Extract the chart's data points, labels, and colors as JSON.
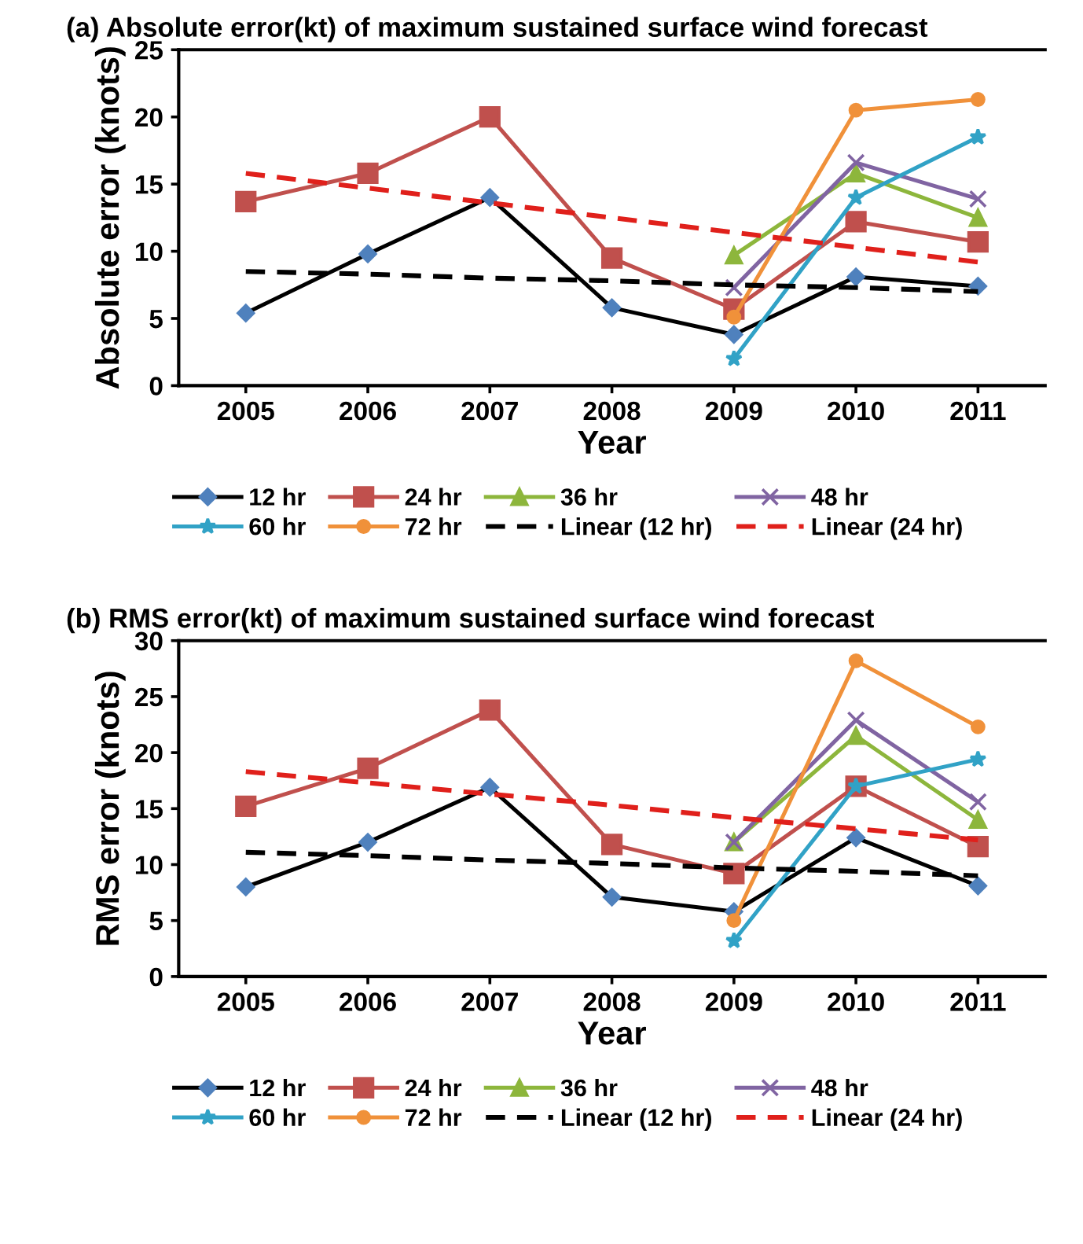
{
  "chart_data": [
    {
      "type": "line",
      "title": "(a) Absolute error(kt) of maximum sustained surface wind forecast",
      "xlabel": "Year",
      "ylabel": "Absolute error (knots)",
      "categories": [
        "2005",
        "2006",
        "2007",
        "2008",
        "2009",
        "2010",
        "2011"
      ],
      "ylim": [
        0,
        25
      ],
      "yticks": [
        0,
        5,
        10,
        15,
        20,
        25
      ],
      "grid": false,
      "legend": "bottom",
      "series": [
        {
          "name": "12 hr",
          "color": "#000000",
          "marker": "diamond",
          "values": [
            5.4,
            9.8,
            14.0,
            5.8,
            3.8,
            8.1,
            7.4
          ]
        },
        {
          "name": "24 hr",
          "color": "#c0504d",
          "marker": "square",
          "values": [
            13.7,
            15.8,
            20.0,
            9.5,
            5.7,
            12.2,
            10.7
          ]
        },
        {
          "name": "36 hr",
          "color": "#8db63c",
          "marker": "triangle",
          "values": [
            null,
            null,
            null,
            null,
            9.7,
            15.8,
            12.5
          ]
        },
        {
          "name": "48 hr",
          "color": "#8064a2",
          "marker": "cross",
          "values": [
            null,
            null,
            null,
            null,
            7.3,
            16.6,
            13.9
          ]
        },
        {
          "name": "60 hr",
          "color": "#31a2c6",
          "marker": "star",
          "values": [
            null,
            null,
            null,
            null,
            2.0,
            14.0,
            18.5
          ]
        },
        {
          "name": "72 hr",
          "color": "#f0913a",
          "marker": "circle",
          "values": [
            null,
            null,
            null,
            null,
            5.1,
            20.5,
            21.3
          ]
        },
        {
          "name": "Linear (12 hr)",
          "color": "#000000",
          "marker": "none",
          "line_style": "dashed",
          "values": [
            8.5,
            8.3,
            8.0,
            7.8,
            7.5,
            7.3,
            7.0
          ]
        },
        {
          "name": "Linear (24 hr)",
          "color": "#e0201b",
          "marker": "none",
          "line_style": "dashed",
          "values": [
            15.8,
            14.7,
            13.6,
            12.5,
            11.4,
            10.3,
            9.2
          ]
        }
      ]
    },
    {
      "type": "line",
      "title": "(b) RMS error(kt) of maximum sustained surface wind forecast",
      "xlabel": "Year",
      "ylabel": "RMS error (knots)",
      "categories": [
        "2005",
        "2006",
        "2007",
        "2008",
        "2009",
        "2010",
        "2011"
      ],
      "ylim": [
        0,
        30
      ],
      "yticks": [
        0,
        5,
        10,
        15,
        20,
        25,
        30
      ],
      "grid": false,
      "legend": "bottom",
      "series": [
        {
          "name": "12 hr",
          "color": "#000000",
          "marker": "diamond",
          "values": [
            8.0,
            12.0,
            16.9,
            7.1,
            5.8,
            12.4,
            8.1
          ]
        },
        {
          "name": "24 hr",
          "color": "#c0504d",
          "marker": "square",
          "values": [
            15.2,
            18.6,
            23.8,
            11.8,
            9.2,
            17.0,
            11.6
          ]
        },
        {
          "name": "36 hr",
          "color": "#8db63c",
          "marker": "triangle",
          "values": [
            null,
            null,
            null,
            null,
            12.0,
            21.5,
            14.0
          ]
        },
        {
          "name": "48 hr",
          "color": "#8064a2",
          "marker": "cross",
          "values": [
            null,
            null,
            null,
            null,
            12.0,
            22.9,
            15.6
          ]
        },
        {
          "name": "60 hr",
          "color": "#31a2c6",
          "marker": "star",
          "values": [
            null,
            null,
            null,
            null,
            3.2,
            17.0,
            19.4
          ]
        },
        {
          "name": "72 hr",
          "color": "#f0913a",
          "marker": "circle",
          "values": [
            null,
            null,
            null,
            null,
            5.0,
            28.2,
            22.3
          ]
        },
        {
          "name": "Linear (12 hr)",
          "color": "#000000",
          "marker": "none",
          "line_style": "dashed",
          "values": [
            11.1,
            10.8,
            10.4,
            10.1,
            9.7,
            9.4,
            9.0
          ]
        },
        {
          "name": "Linear (24 hr)",
          "color": "#e0201b",
          "marker": "none",
          "line_style": "dashed",
          "values": [
            18.3,
            17.3,
            16.3,
            15.3,
            14.2,
            13.2,
            12.2
          ]
        }
      ]
    }
  ]
}
